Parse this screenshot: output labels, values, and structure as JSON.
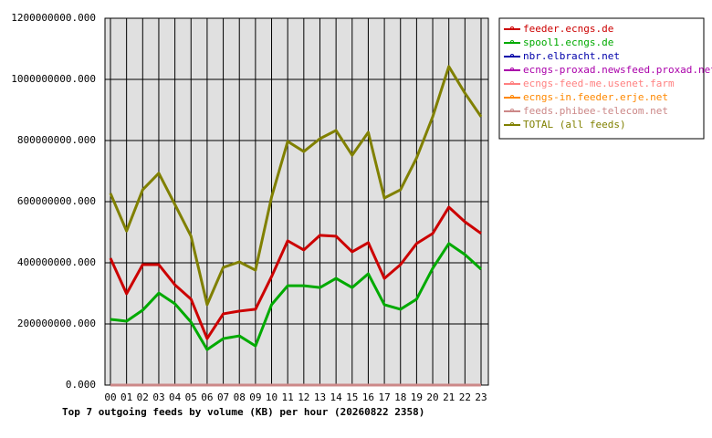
{
  "chart_data": {
    "type": "line",
    "title": "Top 7 outgoing feeds by volume (KB) per hour (20260822 2358)",
    "categories": [
      "00",
      "01",
      "02",
      "03",
      "04",
      "05",
      "06",
      "07",
      "08",
      "09",
      "10",
      "11",
      "12",
      "13",
      "14",
      "15",
      "16",
      "17",
      "18",
      "19",
      "20",
      "21",
      "22",
      "23"
    ],
    "ylim": [
      0,
      1200000000
    ],
    "yticks": [
      {
        "value": 0,
        "label": "0.000"
      },
      {
        "value": 200000000,
        "label": "200000000.000"
      },
      {
        "value": 400000000,
        "label": "400000000.000"
      },
      {
        "value": 600000000,
        "label": "600000000.000"
      },
      {
        "value": 800000000,
        "label": "800000000.000"
      },
      {
        "value": 1000000000,
        "label": "1000000000.000"
      },
      {
        "value": 1200000000,
        "label": "1200000000.000"
      }
    ],
    "grid": true,
    "legend": "right",
    "series": [
      {
        "name": "feeder.ecngs.de",
        "color": "#cc0000",
        "values": [
          415000000,
          299000000,
          394000000,
          394000000,
          328000000,
          281000000,
          152000000,
          233000000,
          242000000,
          248000000,
          355000000,
          472000000,
          442000000,
          490000000,
          487000000,
          436000000,
          466000000,
          349000000,
          394000000,
          463000000,
          496000000,
          582000000,
          534000000,
          496000000
        ]
      },
      {
        "name": "spool1.ecngs.de",
        "color": "#00aa00",
        "values": [
          215000000,
          209000000,
          245000000,
          301000000,
          266000000,
          206000000,
          116000000,
          152000000,
          161000000,
          128000000,
          263000000,
          325000000,
          325000000,
          319000000,
          349000000,
          319000000,
          364000000,
          263000000,
          248000000,
          281000000,
          382000000,
          463000000,
          427000000,
          379000000
        ]
      },
      {
        "name": "nbr.elbracht.net",
        "color": "#0000aa",
        "values": [
          0,
          0,
          0,
          0,
          0,
          0,
          0,
          0,
          0,
          0,
          0,
          0,
          0,
          0,
          0,
          0,
          0,
          0,
          0,
          0,
          0,
          0,
          0,
          0
        ]
      },
      {
        "name": "ecngs-proxad.newsfeed.proxad.net",
        "color": "#aa00aa",
        "values": [
          0,
          0,
          0,
          0,
          0,
          0,
          0,
          0,
          0,
          0,
          0,
          0,
          0,
          0,
          0,
          0,
          0,
          0,
          0,
          0,
          0,
          0,
          0,
          0
        ]
      },
      {
        "name": "ecngs-feed-me.usenet.farm",
        "color": "#ff8080",
        "values": [
          0,
          0,
          0,
          0,
          0,
          0,
          0,
          0,
          0,
          0,
          0,
          0,
          0,
          0,
          0,
          0,
          0,
          0,
          0,
          0,
          0,
          0,
          0,
          0
        ]
      },
      {
        "name": "ecngs-in.feeder.erje.net",
        "color": "#ff8800",
        "values": [
          0,
          0,
          0,
          0,
          0,
          0,
          0,
          0,
          0,
          0,
          0,
          0,
          0,
          0,
          0,
          0,
          0,
          0,
          0,
          0,
          0,
          0,
          0,
          0
        ]
      },
      {
        "name": "feeds.phibee-telecom.net",
        "color": "#cc8888",
        "values": [
          0,
          0,
          0,
          0,
          0,
          0,
          0,
          0,
          0,
          0,
          0,
          0,
          0,
          0,
          0,
          0,
          0,
          0,
          0,
          0,
          0,
          0,
          0,
          0
        ]
      },
      {
        "name": "TOTAL (all feeds)",
        "color": "#808000",
        "values": [
          627000000,
          504000000,
          639000000,
          693000000,
          591000000,
          487000000,
          263000000,
          385000000,
          403000000,
          376000000,
          615000000,
          797000000,
          764000000,
          806000000,
          833000000,
          752000000,
          827000000,
          612000000,
          639000000,
          743000000,
          878000000,
          1042000000,
          955000000,
          878000000
        ]
      }
    ]
  }
}
